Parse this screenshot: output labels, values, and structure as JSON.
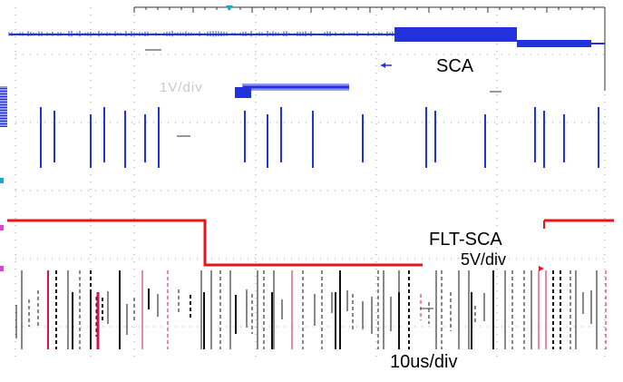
{
  "labels": {
    "channel_1": "SCA",
    "channel_2": "FLT-SCA",
    "channel_2_scale": "5V/div",
    "timebase": "10us/div",
    "channel_1_scale_faded": "1V/div"
  },
  "colors": {
    "channel_1": "#2233dd",
    "channel_2": "#e8141a",
    "digital": "#111111",
    "digital_accent": "#d4144a",
    "grid": "#9a9a9a",
    "trigger": "#18a8c8"
  },
  "icons": {
    "trigger_marker": "triangle-down-icon",
    "channel_1_marker": "ground-1-icon",
    "arrow": "arrow-left-icon"
  }
}
